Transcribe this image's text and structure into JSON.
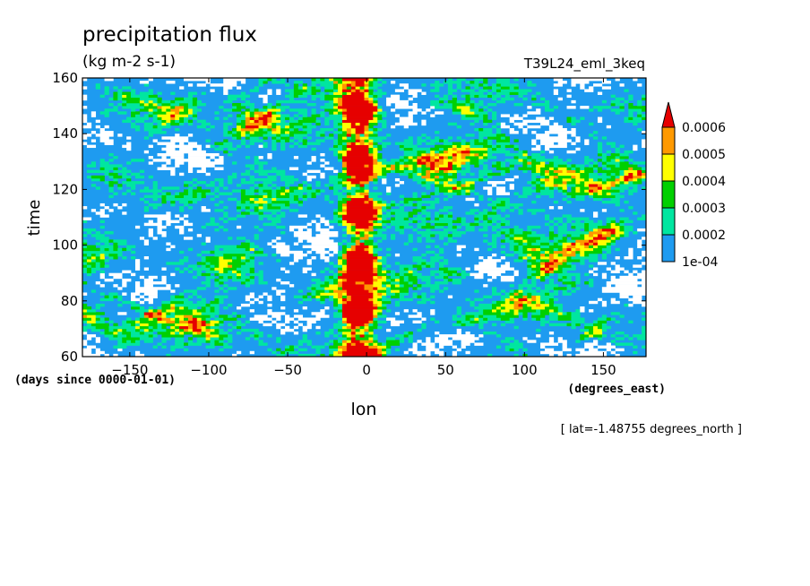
{
  "chart_data": {
    "type": "heatmap",
    "title": "precipitation flux",
    "units": "(kg m-2 s-1)",
    "run_label": "T39L24_eml_3keq",
    "xlabel": "lon",
    "x_units": "(degrees_east)",
    "ylabel": "time",
    "y_units": "(days since 0000-01-01)",
    "footer": "[ lat=-1.48755 degrees_north ]",
    "xlim": [
      -180,
      177
    ],
    "ylim": [
      60,
      160
    ],
    "x_ticks": [
      -150,
      -100,
      -50,
      0,
      50,
      100,
      150
    ],
    "y_ticks": [
      60,
      80,
      100,
      120,
      140,
      160
    ],
    "x_tick_labels": [
      "−150",
      "−100",
      "−50",
      "0",
      "50",
      "100",
      "150"
    ],
    "y_tick_labels": [
      "60",
      "80",
      "100",
      "120",
      "140",
      "160"
    ],
    "colorbar": {
      "levels": [
        0.0001,
        0.0002,
        0.0003,
        0.0004,
        0.0005,
        0.0006
      ],
      "labels": [
        "1e-04",
        "0.0002",
        "0.0003",
        "0.0004",
        "0.0005",
        "0.0006"
      ],
      "colors": [
        "#1e9bf0",
        "#00e6a0",
        "#00d000",
        "#ffff00",
        "#ff9900",
        "#e60000"
      ],
      "extend": "max",
      "below_color": "#ffffff"
    },
    "features": {
      "peak_longitude": 0,
      "peak_band_lon": [
        -20,
        10
      ],
      "notes": "Strong precipitation band near 0° longitude with eastward/westward propagating streaks"
    }
  }
}
